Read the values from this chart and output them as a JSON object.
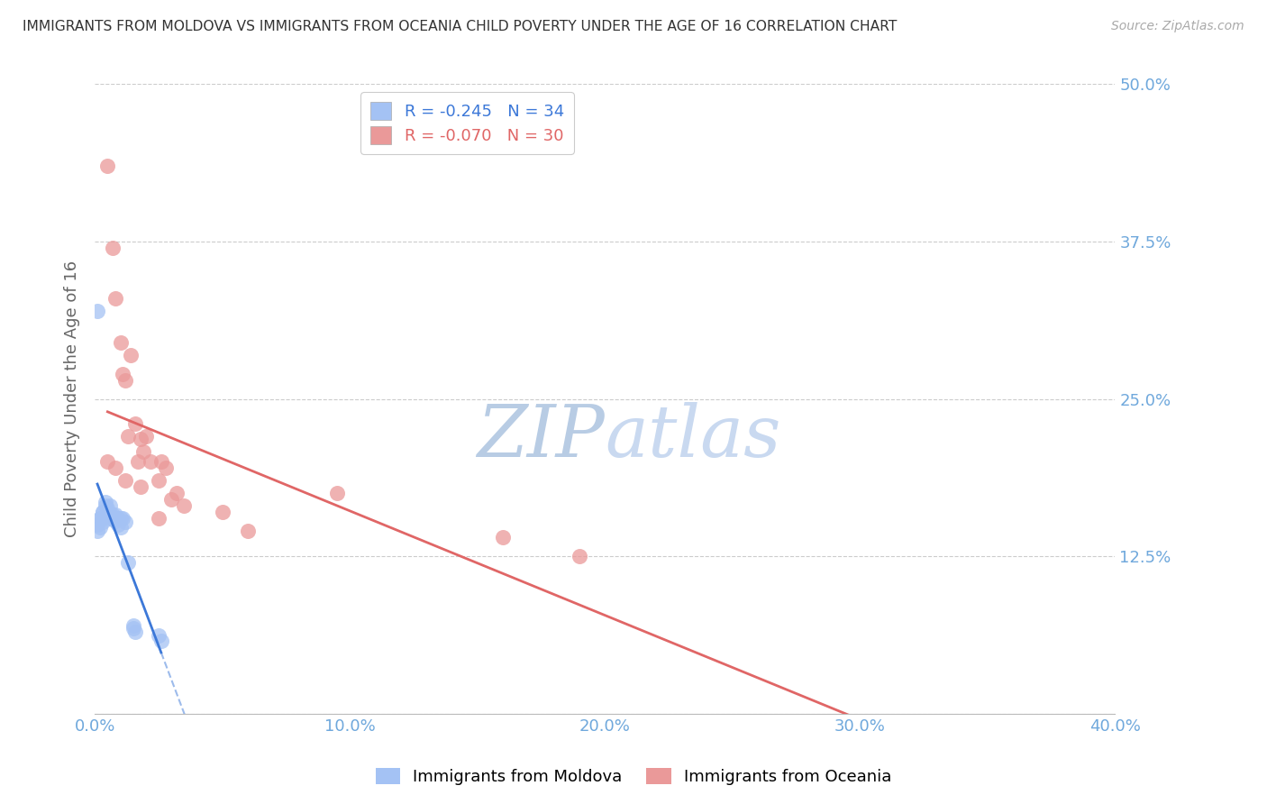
{
  "title": "IMMIGRANTS FROM MOLDOVA VS IMMIGRANTS FROM OCEANIA CHILD POVERTY UNDER THE AGE OF 16 CORRELATION CHART",
  "source": "Source: ZipAtlas.com",
  "ylabel": "Child Poverty Under the Age of 16",
  "xlim": [
    0.0,
    0.4
  ],
  "ylim": [
    0.0,
    0.5
  ],
  "yticks": [
    0.0,
    0.125,
    0.25,
    0.375,
    0.5
  ],
  "ytick_labels": [
    "",
    "12.5%",
    "25.0%",
    "37.5%",
    "50.0%"
  ],
  "xticks": [
    0.0,
    0.1,
    0.2,
    0.3,
    0.4
  ],
  "xtick_labels": [
    "0.0%",
    "10.0%",
    "20.0%",
    "30.0%",
    "40.0%"
  ],
  "legend_R_moldova": "-0.245",
  "legend_N_moldova": "34",
  "legend_R_oceania": "-0.070",
  "legend_N_oceania": "30",
  "color_moldova": "#a4c2f4",
  "color_oceania": "#ea9999",
  "color_moldova_line": "#3c78d8",
  "color_oceania_line": "#e06666",
  "color_axis_labels": "#6fa8dc",
  "color_title": "#333333",
  "color_source": "#aaaaaa",
  "color_watermark": "#ccd9f0",
  "background_color": "#ffffff",
  "grid_color": "#cccccc",
  "moldova_x": [
    0.001,
    0.001,
    0.002,
    0.002,
    0.002,
    0.003,
    0.003,
    0.003,
    0.003,
    0.004,
    0.004,
    0.005,
    0.005,
    0.005,
    0.006,
    0.006,
    0.006,
    0.007,
    0.007,
    0.008,
    0.008,
    0.009,
    0.009,
    0.01,
    0.01,
    0.011,
    0.012,
    0.013,
    0.015,
    0.015,
    0.016,
    0.025,
    0.026,
    0.001
  ],
  "moldova_y": [
    0.15,
    0.145,
    0.155,
    0.148,
    0.155,
    0.16,
    0.155,
    0.152,
    0.16,
    0.168,
    0.165,
    0.16,
    0.158,
    0.163,
    0.165,
    0.158,
    0.155,
    0.158,
    0.155,
    0.158,
    0.153,
    0.155,
    0.15,
    0.155,
    0.148,
    0.155,
    0.152,
    0.12,
    0.07,
    0.068,
    0.065,
    0.062,
    0.058,
    0.32
  ],
  "oceania_x": [
    0.005,
    0.007,
    0.008,
    0.01,
    0.011,
    0.012,
    0.013,
    0.014,
    0.016,
    0.017,
    0.018,
    0.019,
    0.02,
    0.022,
    0.025,
    0.026,
    0.028,
    0.03,
    0.032,
    0.035,
    0.05,
    0.06,
    0.095,
    0.16,
    0.19,
    0.005,
    0.008,
    0.012,
    0.018,
    0.025
  ],
  "oceania_y": [
    0.435,
    0.37,
    0.33,
    0.295,
    0.27,
    0.265,
    0.22,
    0.285,
    0.23,
    0.2,
    0.218,
    0.208,
    0.22,
    0.2,
    0.185,
    0.2,
    0.195,
    0.17,
    0.175,
    0.165,
    0.16,
    0.145,
    0.175,
    0.14,
    0.125,
    0.2,
    0.195,
    0.185,
    0.18,
    0.155
  ]
}
